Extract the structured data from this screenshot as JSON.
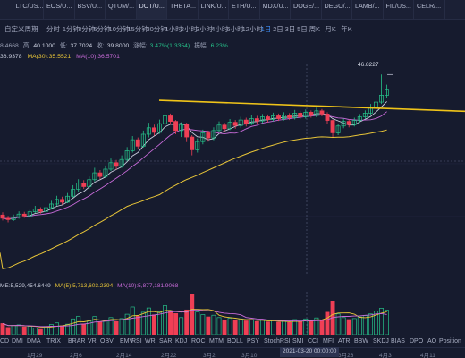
{
  "tabs": [
    {
      "symbol": "",
      "sub": ""
    },
    {
      "symbol": "LTC/US...",
      "sub": ""
    },
    {
      "symbol": "EOS/U...",
      "sub": ""
    },
    {
      "symbol": "BSV/U...",
      "sub": ""
    },
    {
      "symbol": "QTUM/...",
      "sub": ""
    },
    {
      "symbol": "DOT/U...",
      "sub": "",
      "active": true
    },
    {
      "symbol": "THETA...",
      "sub": ""
    },
    {
      "symbol": "LINK/U...",
      "sub": ""
    },
    {
      "symbol": "ETH/U...",
      "sub": ""
    },
    {
      "symbol": "MDX/U...",
      "sub": ""
    },
    {
      "symbol": "DOGE/...",
      "sub": ""
    },
    {
      "symbol": "DEGO/...",
      "sub": ""
    },
    {
      "symbol": "LAMB/...",
      "sub": ""
    },
    {
      "symbol": "FIL/US...",
      "sub": ""
    },
    {
      "symbol": "CELR/...",
      "sub": ""
    }
  ],
  "toolbar": {
    "custom_period": "自定义周期",
    "timeframes": [
      "分时",
      "1分钟",
      "3分钟",
      "5分钟",
      "10分钟",
      "15分钟",
      "30分钟",
      "1小时",
      "2小时",
      "3小时",
      "4小时",
      "6小时",
      "12小时",
      "1日",
      "2日",
      "3日",
      "5日",
      "周K",
      "月K",
      "年K"
    ],
    "active": "1日"
  },
  "ohlc": {
    "open": "8.4668",
    "high_label": "高:",
    "high": "40.1000",
    "low_label": "低:",
    "low": "37.7024",
    "close_label": "收:",
    "close": "39.8000",
    "change_label": "涨幅:",
    "change": "3.47%(1.3354)",
    "amp_label": "振幅:",
    "amp": "6.23%"
  },
  "ma": {
    "ma5": "36.9378",
    "ma30": "MA(30):35.5521",
    "ma10": "MA(10):36.5701"
  },
  "price_tag": "46.8227",
  "volume": {
    "vol": "ME:5,529,454.6449",
    "ma5": "MA(5):5,713,603.2394",
    "ma10": "MA(10):5,877,181.9068"
  },
  "indicators": [
    "CD",
    "DMI",
    "DMA",
    "TRIX",
    "BRAR",
    "VR",
    "OBV",
    "EMV",
    "RSI",
    "WR",
    "SAR",
    "KDJ",
    "ROC",
    "MTM",
    "BOLL",
    "PSY",
    "StochRSI",
    "SMI",
    "CCI",
    "MFI",
    "ATR",
    "BBW",
    "SKDJ",
    "BIAS",
    "DPO",
    "AO",
    "Position"
  ],
  "dates": [
    "1月29",
    "2月6",
    "2月14",
    "2月22",
    "3月2",
    "3月10",
    "3月26",
    "4月3",
    "4月11"
  ],
  "cursor_date": "2021-03-20 00:00:00",
  "chart_data": {
    "type": "candlestick",
    "title": "",
    "ylim": [
      3,
      49
    ],
    "series": [
      {
        "name": "K",
        "values": [
          [
            16.2,
            15.5,
            16.8,
            15.0
          ],
          [
            15.5,
            15.2,
            16.0,
            14.6
          ],
          [
            15.2,
            15.8,
            16.3,
            14.9
          ],
          [
            15.8,
            16.4,
            17.0,
            15.4
          ],
          [
            16.4,
            16.0,
            16.9,
            15.6
          ],
          [
            16.0,
            16.9,
            17.3,
            15.8
          ],
          [
            16.9,
            17.5,
            18.2,
            16.6
          ],
          [
            17.5,
            17.0,
            17.9,
            16.5
          ],
          [
            17.0,
            17.8,
            18.4,
            16.7
          ],
          [
            17.8,
            18.6,
            19.3,
            17.4
          ],
          [
            18.6,
            19.6,
            20.4,
            18.2
          ],
          [
            19.6,
            19.0,
            20.2,
            18.5
          ],
          [
            19.0,
            20.3,
            21.0,
            18.8
          ],
          [
            20.3,
            21.8,
            22.7,
            20.0
          ],
          [
            21.8,
            23.2,
            24.0,
            21.3
          ],
          [
            23.2,
            22.4,
            23.8,
            21.9
          ],
          [
            22.4,
            23.9,
            24.6,
            22.0
          ],
          [
            23.9,
            25.4,
            26.5,
            23.5
          ],
          [
            25.4,
            24.6,
            26.0,
            24.0
          ],
          [
            24.6,
            26.2,
            27.0,
            24.3
          ],
          [
            26.2,
            27.6,
            28.5,
            25.8
          ],
          [
            27.6,
            26.8,
            28.2,
            26.1
          ],
          [
            26.8,
            28.3,
            29.2,
            26.5
          ],
          [
            28.3,
            30.2,
            31.0,
            27.9
          ],
          [
            30.2,
            32.6,
            33.4,
            29.8
          ],
          [
            32.6,
            31.2,
            33.1,
            30.5
          ],
          [
            31.2,
            33.8,
            34.6,
            30.9
          ],
          [
            33.8,
            35.2,
            36.3,
            33.1
          ],
          [
            35.2,
            34.2,
            35.9,
            33.5
          ],
          [
            34.2,
            36.1,
            37.0,
            33.9
          ],
          [
            36.1,
            37.8,
            38.8,
            35.6
          ],
          [
            37.8,
            36.6,
            38.3,
            35.9
          ],
          [
            36.6,
            34.6,
            36.9,
            33.8
          ],
          [
            34.6,
            35.9,
            36.4,
            33.2
          ],
          [
            35.9,
            33.2,
            36.3,
            32.1
          ],
          [
            33.2,
            30.4,
            33.6,
            29.2
          ],
          [
            30.4,
            32.2,
            32.9,
            29.8
          ],
          [
            32.2,
            34.1,
            34.8,
            31.6
          ],
          [
            34.1,
            33.0,
            34.6,
            32.2
          ],
          [
            33.0,
            34.6,
            35.3,
            32.5
          ],
          [
            34.6,
            35.8,
            36.6,
            34.2
          ],
          [
            35.8,
            35.0,
            36.3,
            34.3
          ],
          [
            35.0,
            36.4,
            37.1,
            34.7
          ],
          [
            36.4,
            35.7,
            36.9,
            35.0
          ],
          [
            35.7,
            36.9,
            37.6,
            35.2
          ],
          [
            36.9,
            36.2,
            37.4,
            35.5
          ],
          [
            36.2,
            37.2,
            37.9,
            35.8
          ],
          [
            37.2,
            36.7,
            37.8,
            36.0
          ],
          [
            36.7,
            37.6,
            38.2,
            36.2
          ],
          [
            37.6,
            37.0,
            38.1,
            36.4
          ],
          [
            37.0,
            37.8,
            38.5,
            36.6
          ],
          [
            37.8,
            37.2,
            38.3,
            36.7
          ],
          [
            37.2,
            38.0,
            38.6,
            36.8
          ],
          [
            38.0,
            37.4,
            38.4,
            36.9
          ],
          [
            37.4,
            38.4,
            39.1,
            37.0
          ],
          [
            38.4,
            37.6,
            38.9,
            37.1
          ],
          [
            37.6,
            38.6,
            39.2,
            37.2
          ],
          [
            38.6,
            37.9,
            39.0,
            37.4
          ],
          [
            37.9,
            38.9,
            39.6,
            37.5
          ],
          [
            38.9,
            38.2,
            39.3,
            37.7
          ],
          [
            38.2,
            36.8,
            38.6,
            36.1
          ],
          [
            36.8,
            34.1,
            37.0,
            33.2
          ],
          [
            34.1,
            35.6,
            36.1,
            33.6
          ],
          [
            35.6,
            36.6,
            37.2,
            35.1
          ],
          [
            36.6,
            35.9,
            37.0,
            35.3
          ],
          [
            35.9,
            36.8,
            37.4,
            35.5
          ],
          [
            36.8,
            37.6,
            38.2,
            36.3
          ],
          [
            37.6,
            38.4,
            39.0,
            37.1
          ],
          [
            38.4,
            39.6,
            40.4,
            38.0
          ],
          [
            39.6,
            40.8,
            42.0,
            39.2
          ],
          [
            40.8,
            42.3,
            46.8,
            40.4
          ],
          [
            42.3,
            43.6,
            44.6,
            41.6
          ]
        ]
      }
    ],
    "volume": [
      3.4,
      2.2,
      2.8,
      3.0,
      2.4,
      2.6,
      2.0,
      1.6,
      2.5,
      3.1,
      3.6,
      2.7,
      3.2,
      4.8,
      5.6,
      3.3,
      4.2,
      5.5,
      3.8,
      4.5,
      5.2,
      4.0,
      4.9,
      6.2,
      8.4,
      5.6,
      6.8,
      8.1,
      6.0,
      6.9,
      8.8,
      7.0,
      6.4,
      5.2,
      7.5,
      12.3,
      6.9,
      6.1,
      5.4,
      5.9,
      5.2,
      4.5,
      5.0,
      4.4,
      4.8,
      4.2,
      4.6,
      4.0,
      4.4,
      3.9,
      4.3,
      3.8,
      4.1,
      3.7,
      4.6,
      4.0,
      4.8,
      4.2,
      5.1,
      4.4,
      6.8,
      10.2,
      6.3,
      5.2,
      4.6,
      4.9,
      5.4,
      5.8,
      6.3,
      7.2,
      8.0,
      7.4
    ],
    "ma_lines": [
      "MA5",
      "MA10",
      "MA30"
    ]
  }
}
